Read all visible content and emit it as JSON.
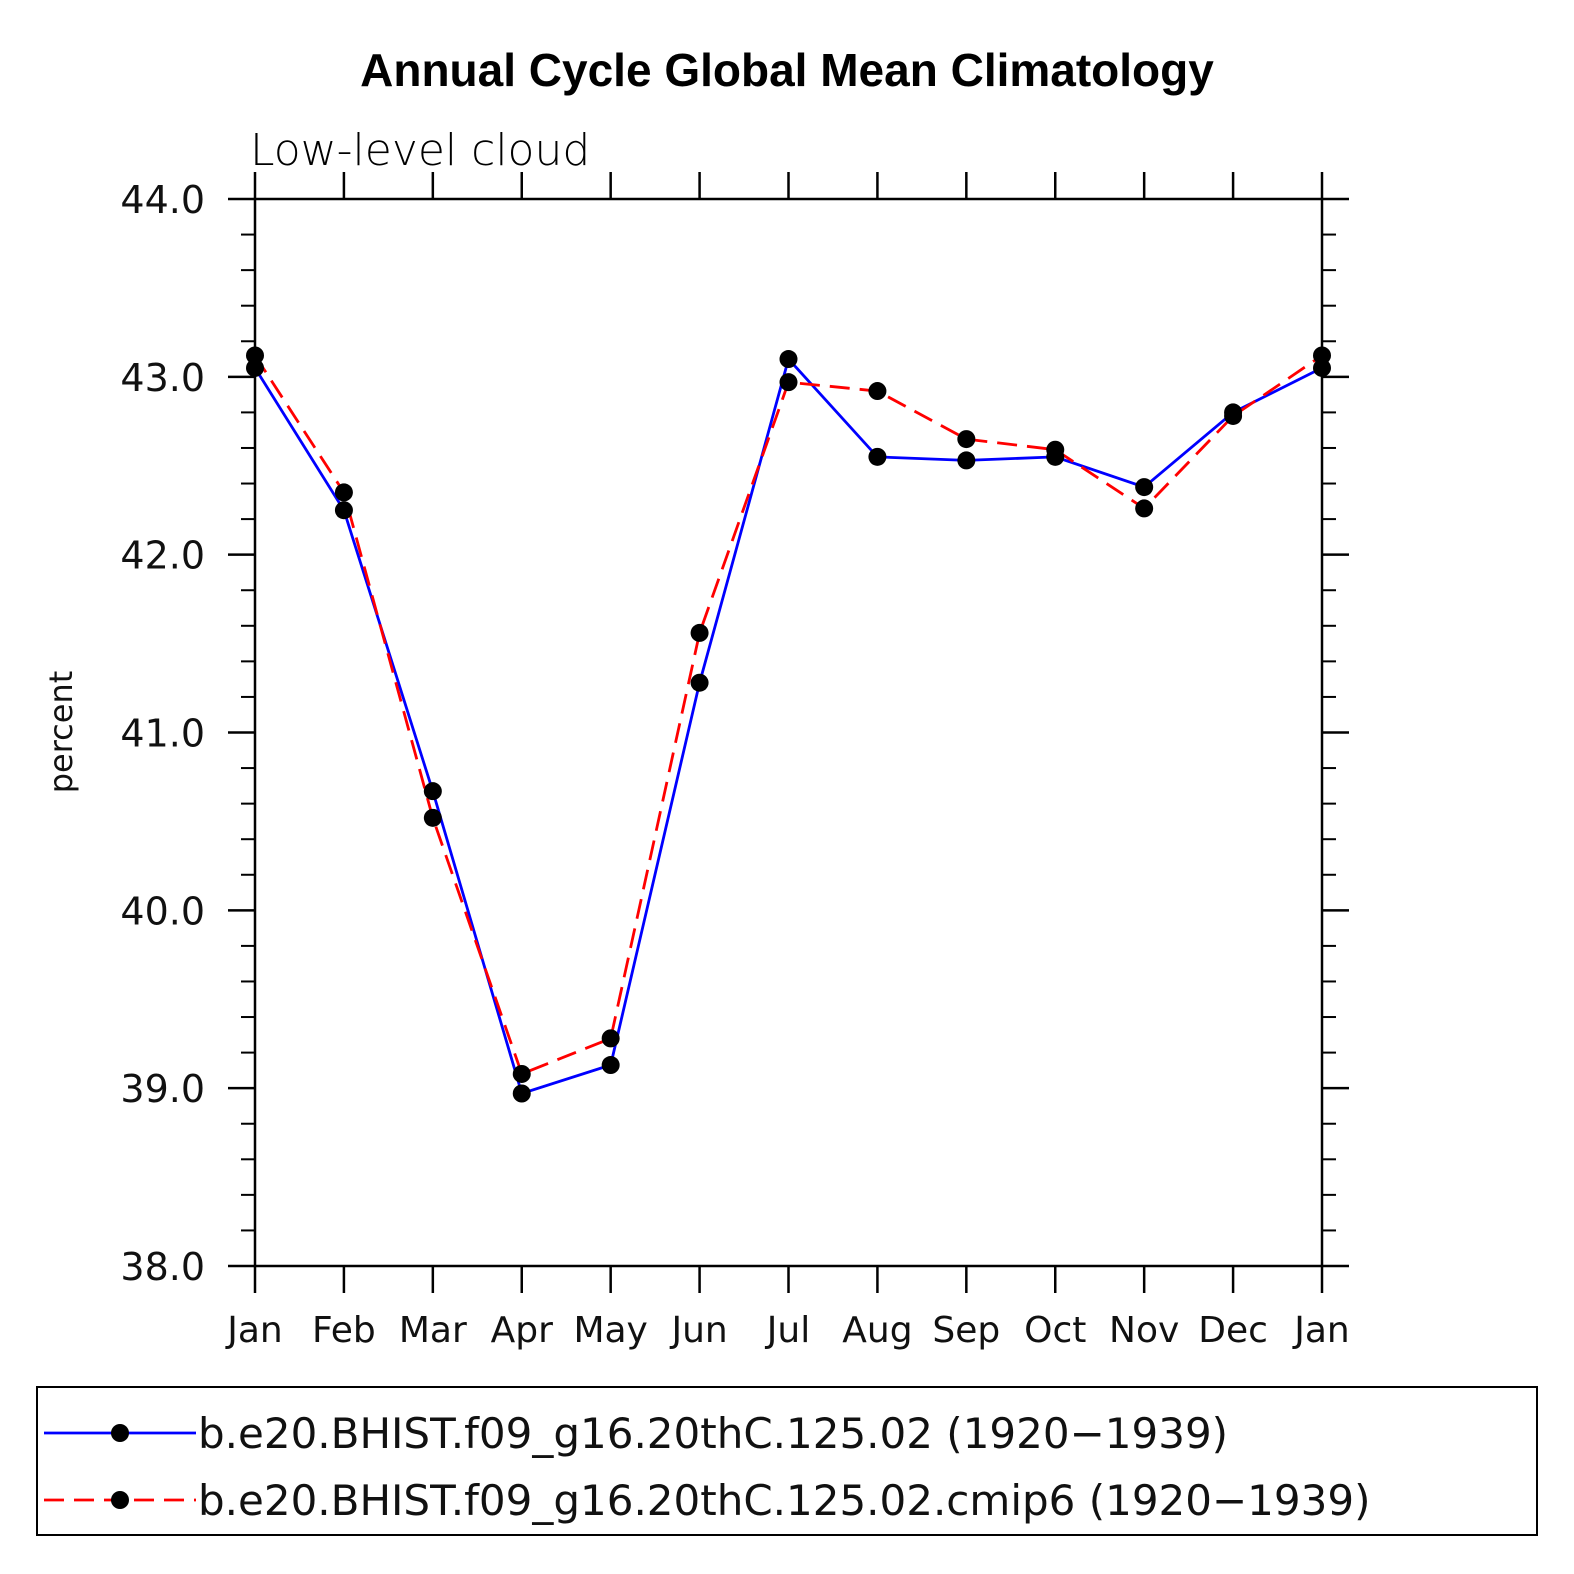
{
  "chart_data": {
    "type": "line",
    "title": "Annual Cycle Global Mean Climatology",
    "subtitle": "Low-level cloud",
    "xlabel": "",
    "ylabel": "percent",
    "categories": [
      "Jan",
      "Feb",
      "Mar",
      "Apr",
      "May",
      "Jun",
      "Jul",
      "Aug",
      "Sep",
      "Oct",
      "Nov",
      "Dec",
      "Jan"
    ],
    "ylim": [
      38.0,
      44.0
    ],
    "yticks": [
      "38.0",
      "39.0",
      "40.0",
      "41.0",
      "42.0",
      "43.0",
      "44.0"
    ],
    "y_minor_step": 0.2,
    "grid": false,
    "legend_position": "bottom",
    "series": [
      {
        "name": "b.e20.BHIST.f09_g16.20thC.125.02 (1920−1939)",
        "color": "#0000ff",
        "dash": "solid",
        "marker": "filled-circle",
        "values": [
          43.05,
          42.25,
          40.67,
          38.97,
          39.13,
          41.28,
          43.1,
          42.55,
          42.53,
          42.55,
          42.38,
          42.8,
          43.05
        ]
      },
      {
        "name": "b.e20.BHIST.f09_g16.20thC.125.02.cmip6 (1920−1939)",
        "color": "#ff0000",
        "dash": "dashed",
        "marker": "filled-circle",
        "values": [
          43.12,
          42.35,
          40.52,
          39.08,
          39.28,
          41.56,
          42.97,
          42.92,
          42.65,
          42.59,
          42.26,
          42.78,
          43.12
        ]
      }
    ]
  }
}
